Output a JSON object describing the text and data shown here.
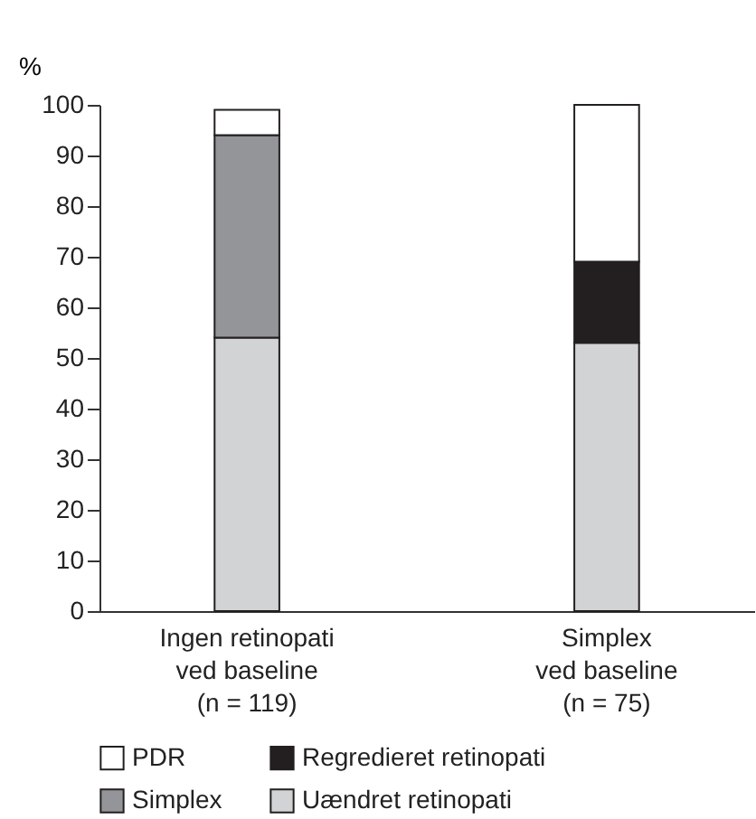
{
  "chart_data": {
    "type": "bar",
    "stacked": true,
    "ylabel": "%",
    "categories": [
      "Ingen retinopati\nved baseline\n(n = 119)",
      "Simplex\nved baseline\n(n = 75)"
    ],
    "series": [
      {
        "name": "Uændret retinopati",
        "color": "#d1d3d4",
        "values": [
          54,
          53
        ]
      },
      {
        "name": "Simplex",
        "color": "#939598",
        "values": [
          40,
          null
        ]
      },
      {
        "name": "Regredieret retinopati",
        "color": "#231f20",
        "values": [
          null,
          16
        ]
      },
      {
        "name": "PDR",
        "color": "#ffffff",
        "values": [
          5,
          31
        ]
      }
    ],
    "ylim": [
      0,
      100
    ],
    "yticks": [
      0,
      10,
      20,
      30,
      40,
      50,
      60,
      70,
      80,
      90,
      100
    ],
    "grid": false,
    "legend": "bottom left"
  }
}
